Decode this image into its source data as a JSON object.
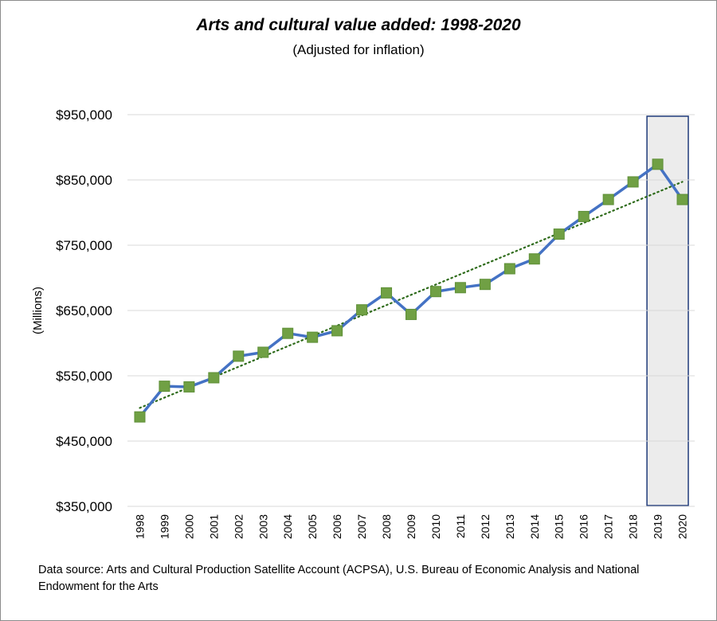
{
  "title": "Arts and cultural value added: 1998-2020",
  "subtitle": "(Adjusted for inflation)",
  "source_note": "Data source: Arts and Cultural Production Satellite Account (ACPSA), U.S. Bureau of Economic Analysis and National Endowment for the Arts",
  "colors": {
    "line": "#4472c4",
    "marker": "#70a044",
    "marker_edge": "#5e8f37",
    "trendline": "#2e6b1a",
    "gridline": "#d9d9d9",
    "highlight_fill": "#ececec",
    "highlight_border": "#1f3a7a"
  },
  "chart_data": {
    "type": "line",
    "title": "Arts and cultural value added: 1998-2020",
    "subtitle": "(Adjusted for inflation)",
    "xlabel": "",
    "ylabel": "(Millions)",
    "categories": [
      "1998",
      "1999",
      "2000",
      "2001",
      "2002",
      "2003",
      "2004",
      "2005",
      "2006",
      "2007",
      "2008",
      "2009",
      "2010",
      "2011",
      "2012",
      "2013",
      "2014",
      "2015",
      "2016",
      "2017",
      "2018",
      "2019",
      "2020"
    ],
    "series": [
      {
        "values": [
          487000,
          534000,
          533000,
          547000,
          580000,
          586000,
          615000,
          609000,
          619000,
          651000,
          677000,
          644000,
          679000,
          685000,
          690000,
          714000,
          729000,
          767000,
          794000,
          820000,
          847000,
          874000,
          820000
        ]
      }
    ],
    "trendline": {
      "type": "linear",
      "style": "dotted"
    },
    "highlight": {
      "categories": [
        "2019",
        "2020"
      ]
    },
    "ylim": [
      350000,
      950000
    ],
    "yticks": [
      350000,
      450000,
      550000,
      650000,
      750000,
      850000,
      950000
    ],
    "ytick_labels": [
      "$350,000",
      "$450,000",
      "$550,000",
      "$650,000",
      "$750,000",
      "$850,000",
      "$950,000"
    ],
    "grid": true,
    "legend": "none"
  }
}
